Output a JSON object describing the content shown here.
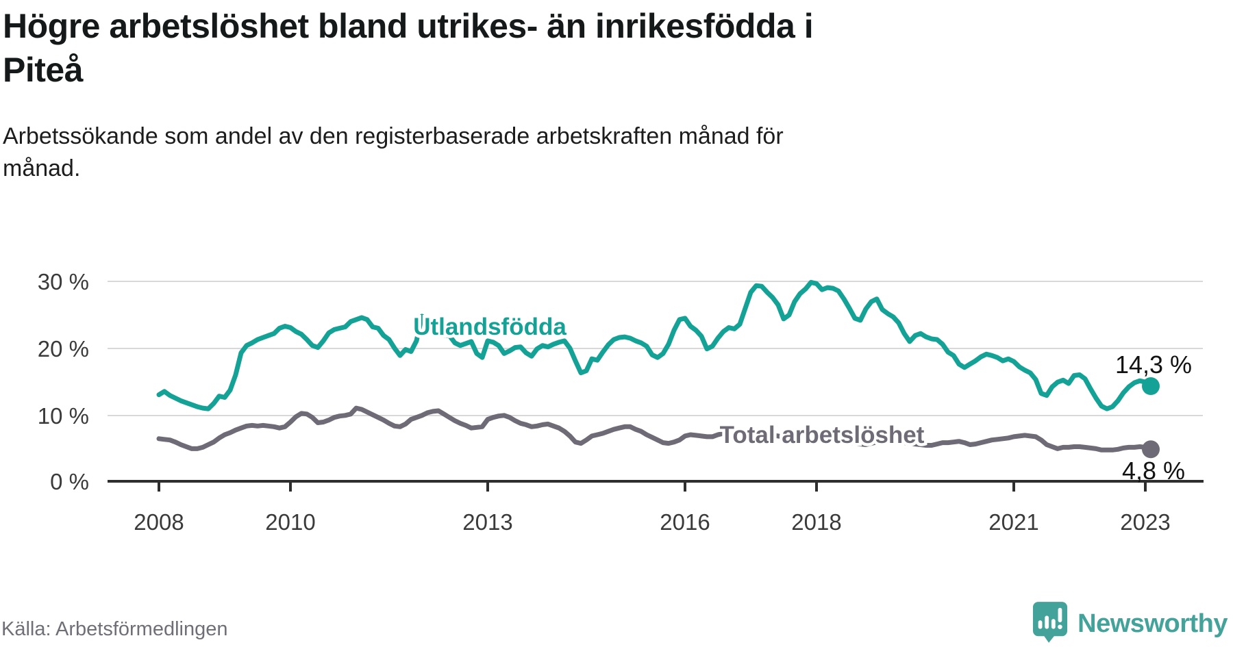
{
  "title": "Högre arbetslöshet bland utrikes- än inrikesfödda i\nPiteå",
  "subtitle": "Arbetssökande som andel av den registerbaserade arbetskraften månad för\nmånad.",
  "source": "Källa: Arbetsförmedlingen",
  "branding": {
    "name": "Newsworthy",
    "icon": "newsworthy-speech-bubble-bar-chart-icon",
    "color": "#43a39a"
  },
  "colors": {
    "foreign_born_line": "#15a296",
    "total_line": "#6f6b76",
    "gridline": "#d8d8d8",
    "axis": "#2e2e2e",
    "title_text": "#16191a",
    "value_label_text": "#121212",
    "source_text": "#6f6f78"
  },
  "chart_data": {
    "type": "line",
    "title": "Högre arbetslöshet bland utrikes- än inrikesfödda i Piteå",
    "subtitle": "Arbetssökande som andel av den registerbaserade arbetskraften månad för månad.",
    "unit": "percent",
    "frequency": "monthly",
    "x_start": "2008-01",
    "x_end": "2023-02",
    "ylim": [
      0,
      32
    ],
    "grid": "horizontal",
    "legend_position": "inline-labels",
    "y_tick_labels": [
      "0 %",
      "10 %",
      "20 %",
      "30 %"
    ],
    "x_tick_labels": [
      "2008",
      "2010",
      "2013",
      "2016",
      "2018",
      "2021",
      "2023"
    ],
    "series": [
      {
        "name": "Utlandsfödda",
        "color": "#15a296",
        "end_value": 14.3,
        "end_label": "14,3 %",
        "values": [
          13.0,
          13.5,
          12.9,
          12.5,
          12.1,
          11.8,
          11.5,
          11.2,
          11.0,
          10.9,
          11.7,
          12.8,
          12.6,
          13.7,
          16.0,
          19.3,
          20.4,
          20.8,
          21.3,
          21.6,
          21.9,
          22.2,
          23.0,
          23.3,
          23.1,
          22.5,
          22.1,
          21.3,
          20.4,
          20.1,
          21.1,
          22.3,
          22.8,
          23.0,
          23.2,
          24.0,
          24.3,
          24.6,
          24.3,
          23.2,
          23.0,
          21.9,
          21.3,
          20.0,
          18.9,
          19.8,
          19.5,
          21.1,
          24.8,
          24.2,
          23.2,
          22.4,
          21.9,
          21.9,
          20.8,
          20.4,
          20.7,
          21.0,
          19.2,
          18.6,
          21.1,
          20.9,
          20.4,
          19.2,
          19.6,
          20.1,
          20.2,
          19.3,
          18.8,
          19.9,
          20.4,
          20.2,
          20.6,
          20.9,
          21.1,
          20.0,
          18.1,
          16.3,
          16.6,
          18.4,
          18.2,
          19.4,
          20.5,
          21.3,
          21.6,
          21.7,
          21.5,
          21.1,
          20.8,
          20.3,
          19.0,
          18.6,
          19.2,
          20.6,
          22.7,
          24.3,
          24.5,
          23.3,
          22.7,
          21.8,
          19.9,
          20.3,
          21.5,
          22.5,
          23.1,
          22.9,
          23.6,
          26.0,
          28.4,
          29.4,
          29.3,
          28.4,
          27.6,
          26.5,
          24.4,
          25.0,
          27.0,
          28.2,
          28.9,
          29.9,
          29.7,
          28.8,
          29.1,
          29.0,
          28.6,
          27.4,
          26.0,
          24.5,
          24.2,
          25.9,
          27.0,
          27.4,
          25.8,
          25.2,
          24.7,
          23.8,
          22.2,
          21.0,
          21.9,
          22.2,
          21.7,
          21.4,
          21.3,
          20.6,
          19.4,
          18.9,
          17.6,
          17.1,
          17.6,
          18.1,
          18.7,
          19.1,
          18.9,
          18.6,
          18.1,
          18.4,
          18.0,
          17.2,
          16.7,
          16.3,
          15.3,
          13.2,
          12.9,
          14.2,
          14.9,
          15.2,
          14.7,
          15.9,
          16.0,
          15.4,
          13.9,
          12.5,
          11.3,
          10.9,
          11.2,
          12.1,
          13.3,
          14.2,
          14.8,
          15.1,
          14.9,
          14.3
        ]
      },
      {
        "name": "Total arbetslöshet",
        "color": "#6f6b76",
        "end_value": 4.8,
        "end_label": "4,8 %",
        "values": [
          6.4,
          6.3,
          6.2,
          5.9,
          5.5,
          5.2,
          4.9,
          4.9,
          5.1,
          5.5,
          5.9,
          6.5,
          7.0,
          7.3,
          7.7,
          8.0,
          8.3,
          8.4,
          8.3,
          8.4,
          8.3,
          8.2,
          8.0,
          8.2,
          8.9,
          9.7,
          10.2,
          10.1,
          9.6,
          8.8,
          8.9,
          9.2,
          9.6,
          9.8,
          9.9,
          10.1,
          11.0,
          10.8,
          10.4,
          10.0,
          9.6,
          9.2,
          8.7,
          8.3,
          8.2,
          8.6,
          9.3,
          9.6,
          9.9,
          10.3,
          10.5,
          10.6,
          10.1,
          9.6,
          9.1,
          8.7,
          8.4,
          8.0,
          8.1,
          8.2,
          9.3,
          9.6,
          9.8,
          9.9,
          9.6,
          9.1,
          8.7,
          8.5,
          8.2,
          8.3,
          8.5,
          8.6,
          8.3,
          8.0,
          7.5,
          6.8,
          5.9,
          5.7,
          6.2,
          6.8,
          7.0,
          7.2,
          7.5,
          7.8,
          8.0,
          8.2,
          8.2,
          7.8,
          7.5,
          7.0,
          6.6,
          6.2,
          5.8,
          5.7,
          5.9,
          6.2,
          6.8,
          7.0,
          6.9,
          6.8,
          6.7,
          6.7,
          7.0,
          7.2,
          6.9,
          6.7,
          6.8,
          7.0,
          7.3,
          7.4,
          7.3,
          7.1,
          6.9,
          6.8,
          6.6,
          6.4,
          6.2,
          6.1,
          6.3,
          6.5,
          6.7,
          6.8,
          6.7,
          6.5,
          6.3,
          6.1,
          5.9,
          5.7,
          5.6,
          5.5,
          5.7,
          5.9,
          6.1,
          6.2,
          6.1,
          6.0,
          5.8,
          5.7,
          5.6,
          5.5,
          5.4,
          5.4,
          5.6,
          5.8,
          5.8,
          5.9,
          6.0,
          5.8,
          5.5,
          5.6,
          5.8,
          6.0,
          6.2,
          6.3,
          6.4,
          6.5,
          6.7,
          6.8,
          6.9,
          6.8,
          6.7,
          6.2,
          5.5,
          5.2,
          4.9,
          5.1,
          5.1,
          5.2,
          5.2,
          5.1,
          5.0,
          4.9,
          4.7,
          4.7,
          4.7,
          4.8,
          5.0,
          5.1,
          5.1,
          5.2,
          5.1,
          4.8
        ]
      }
    ]
  }
}
